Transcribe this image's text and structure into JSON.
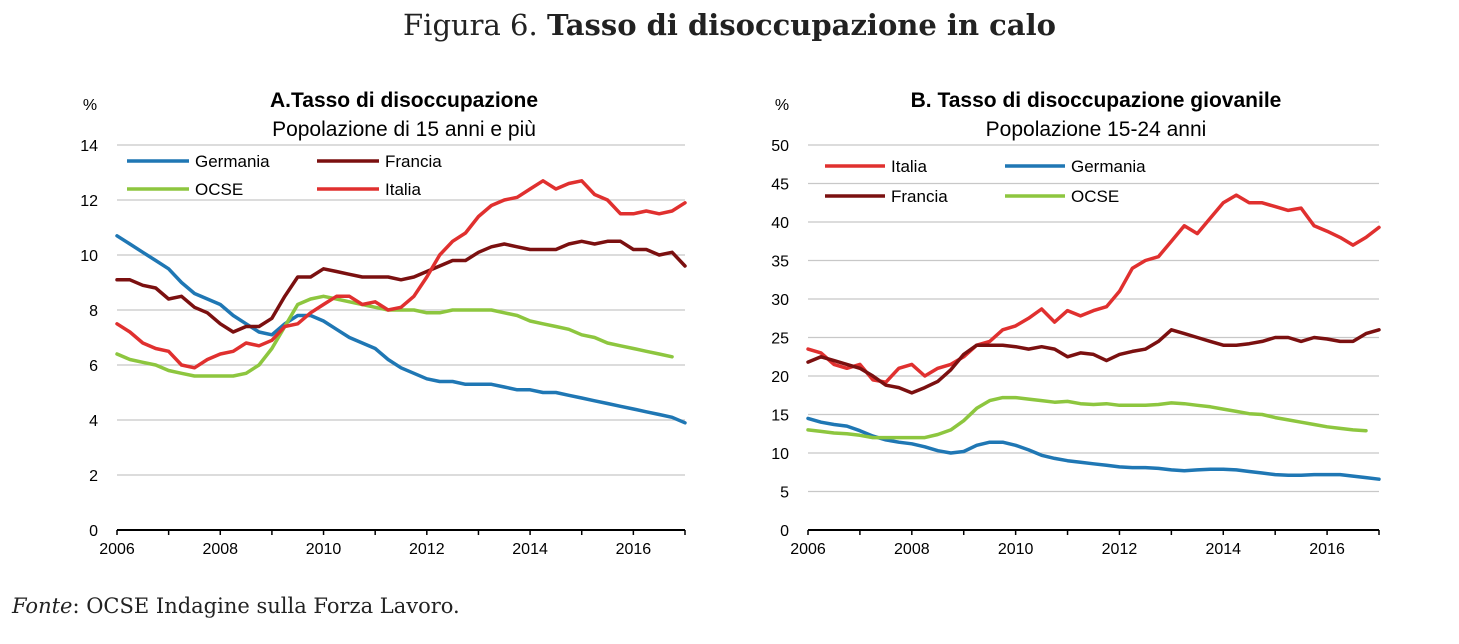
{
  "figure": {
    "label": "Figura 6.",
    "title": "Tasso di disoccupazione in calo",
    "source_label": "Fonte",
    "source_text": ": OCSE Indagine sulla Forza Lavoro."
  },
  "colors": {
    "Germania": "#1f77b4",
    "Francia": "#7b1010",
    "OCSE": "#8dc63f",
    "Italia": "#e0302f"
  },
  "chart_data": [
    {
      "type": "line",
      "title": "A.Tasso di disoccupazione",
      "subtitle": "Popolazione di 15 anni e più",
      "unit_label": "%",
      "xlim": [
        2006,
        2017
      ],
      "ylim": [
        0,
        14
      ],
      "yticks": [
        0,
        2,
        4,
        6,
        8,
        10,
        12,
        14
      ],
      "xticks": [
        2006,
        2008,
        2010,
        2012,
        2014,
        2016
      ],
      "grid": true,
      "legend_order": [
        "Germania",
        "Francia",
        "OCSE",
        "Italia"
      ],
      "series": [
        {
          "name": "Germania",
          "x": [
            2006,
            2006.25,
            2006.5,
            2006.75,
            2007,
            2007.25,
            2007.5,
            2007.75,
            2008,
            2008.25,
            2008.5,
            2008.75,
            2009,
            2009.25,
            2009.5,
            2009.75,
            2010,
            2010.25,
            2010.5,
            2010.75,
            2011,
            2011.25,
            2011.5,
            2011.75,
            2012,
            2012.25,
            2012.5,
            2012.75,
            2013,
            2013.25,
            2013.5,
            2013.75,
            2014,
            2014.25,
            2014.5,
            2014.75,
            2015,
            2015.25,
            2015.5,
            2015.75,
            2016,
            2016.25,
            2016.5,
            2016.75,
            2017
          ],
          "y": [
            10.7,
            10.4,
            10.1,
            9.8,
            9.5,
            9.0,
            8.6,
            8.4,
            8.2,
            7.8,
            7.5,
            7.2,
            7.1,
            7.5,
            7.8,
            7.8,
            7.6,
            7.3,
            7.0,
            6.8,
            6.6,
            6.2,
            5.9,
            5.7,
            5.5,
            5.4,
            5.4,
            5.3,
            5.3,
            5.3,
            5.2,
            5.1,
            5.1,
            5.0,
            5.0,
            4.9,
            4.8,
            4.7,
            4.6,
            4.5,
            4.4,
            4.3,
            4.2,
            4.1,
            3.9
          ]
        },
        {
          "name": "Francia",
          "x": [
            2006,
            2006.25,
            2006.5,
            2006.75,
            2007,
            2007.25,
            2007.5,
            2007.75,
            2008,
            2008.25,
            2008.5,
            2008.75,
            2009,
            2009.25,
            2009.5,
            2009.75,
            2010,
            2010.25,
            2010.5,
            2010.75,
            2011,
            2011.25,
            2011.5,
            2011.75,
            2012,
            2012.25,
            2012.5,
            2012.75,
            2013,
            2013.25,
            2013.5,
            2013.75,
            2014,
            2014.25,
            2014.5,
            2014.75,
            2015,
            2015.25,
            2015.5,
            2015.75,
            2016,
            2016.25,
            2016.5,
            2016.75,
            2017
          ],
          "y": [
            9.1,
            9.1,
            8.9,
            8.8,
            8.4,
            8.5,
            8.1,
            7.9,
            7.5,
            7.2,
            7.4,
            7.4,
            7.7,
            8.5,
            9.2,
            9.2,
            9.5,
            9.4,
            9.3,
            9.2,
            9.2,
            9.2,
            9.1,
            9.2,
            9.4,
            9.6,
            9.8,
            9.8,
            10.1,
            10.3,
            10.4,
            10.3,
            10.2,
            10.2,
            10.2,
            10.4,
            10.5,
            10.4,
            10.5,
            10.5,
            10.2,
            10.2,
            10.0,
            10.1,
            9.6
          ]
        },
        {
          "name": "OCSE",
          "x": [
            2006,
            2006.25,
            2006.5,
            2006.75,
            2007,
            2007.25,
            2007.5,
            2007.75,
            2008,
            2008.25,
            2008.5,
            2008.75,
            2009,
            2009.25,
            2009.5,
            2009.75,
            2010,
            2010.25,
            2010.5,
            2010.75,
            2011,
            2011.25,
            2011.5,
            2011.75,
            2012,
            2012.25,
            2012.5,
            2012.75,
            2013,
            2013.25,
            2013.5,
            2013.75,
            2014,
            2014.25,
            2014.5,
            2014.75,
            2015,
            2015.25,
            2015.5,
            2015.75,
            2016,
            2016.25,
            2016.5,
            2016.75
          ],
          "y": [
            6.4,
            6.2,
            6.1,
            6.0,
            5.8,
            5.7,
            5.6,
            5.6,
            5.6,
            5.6,
            5.7,
            6.0,
            6.6,
            7.4,
            8.2,
            8.4,
            8.5,
            8.4,
            8.3,
            8.2,
            8.1,
            8.0,
            8.0,
            8.0,
            7.9,
            7.9,
            8.0,
            8.0,
            8.0,
            8.0,
            7.9,
            7.8,
            7.6,
            7.5,
            7.4,
            7.3,
            7.1,
            7.0,
            6.8,
            6.7,
            6.6,
            6.5,
            6.4,
            6.3
          ]
        },
        {
          "name": "Italia",
          "x": [
            2006,
            2006.25,
            2006.5,
            2006.75,
            2007,
            2007.25,
            2007.5,
            2007.75,
            2008,
            2008.25,
            2008.5,
            2008.75,
            2009,
            2009.25,
            2009.5,
            2009.75,
            2010,
            2010.25,
            2010.5,
            2010.75,
            2011,
            2011.25,
            2011.5,
            2011.75,
            2012,
            2012.25,
            2012.5,
            2012.75,
            2013,
            2013.25,
            2013.5,
            2013.75,
            2014,
            2014.25,
            2014.5,
            2014.75,
            2015,
            2015.25,
            2015.5,
            2015.75,
            2016,
            2016.25,
            2016.5,
            2016.75,
            2017
          ],
          "y": [
            7.5,
            7.2,
            6.8,
            6.6,
            6.5,
            6.0,
            5.9,
            6.2,
            6.4,
            6.5,
            6.8,
            6.7,
            6.9,
            7.4,
            7.5,
            7.9,
            8.2,
            8.5,
            8.5,
            8.2,
            8.3,
            8.0,
            8.1,
            8.5,
            9.2,
            10.0,
            10.5,
            10.8,
            11.4,
            11.8,
            12.0,
            12.1,
            12.4,
            12.7,
            12.4,
            12.6,
            12.7,
            12.2,
            12.0,
            11.5,
            11.5,
            11.6,
            11.5,
            11.6,
            11.9
          ]
        }
      ]
    },
    {
      "type": "line",
      "title": "B. Tasso di disoccupazione giovanile",
      "subtitle": "Popolazione 15-24 anni",
      "unit_label": "%",
      "xlim": [
        2006,
        2017
      ],
      "ylim": [
        0,
        50
      ],
      "yticks": [
        0,
        5,
        10,
        15,
        20,
        25,
        30,
        35,
        40,
        45,
        50
      ],
      "xticks": [
        2006,
        2008,
        2010,
        2012,
        2014,
        2016
      ],
      "grid": true,
      "legend_order": [
        "Italia",
        "Germania",
        "Francia",
        "OCSE"
      ],
      "series": [
        {
          "name": "Italia",
          "x": [
            2006,
            2006.25,
            2006.5,
            2006.75,
            2007,
            2007.25,
            2007.5,
            2007.75,
            2008,
            2008.25,
            2008.5,
            2008.75,
            2009,
            2009.25,
            2009.5,
            2009.75,
            2010,
            2010.25,
            2010.5,
            2010.75,
            2011,
            2011.25,
            2011.5,
            2011.75,
            2012,
            2012.25,
            2012.5,
            2012.75,
            2013,
            2013.25,
            2013.5,
            2013.75,
            2014,
            2014.25,
            2014.5,
            2014.75,
            2015,
            2015.25,
            2015.5,
            2015.75,
            2016,
            2016.25,
            2016.5,
            2016.75,
            2017
          ],
          "y": [
            23.5,
            23.0,
            21.5,
            21.0,
            21.5,
            19.5,
            19.2,
            21.0,
            21.5,
            20.0,
            21.0,
            21.5,
            22.5,
            24.0,
            24.5,
            26.0,
            26.5,
            27.5,
            28.7,
            27.0,
            28.5,
            27.8,
            28.5,
            29.0,
            31.0,
            34.0,
            35.0,
            35.5,
            37.5,
            39.5,
            38.5,
            40.5,
            42.5,
            43.5,
            42.5,
            42.5,
            42.0,
            41.5,
            41.8,
            39.5,
            38.8,
            38.0,
            37.0,
            38.0,
            39.3
          ]
        },
        {
          "name": "Germania",
          "x": [
            2006,
            2006.25,
            2006.5,
            2006.75,
            2007,
            2007.25,
            2007.5,
            2007.75,
            2008,
            2008.25,
            2008.5,
            2008.75,
            2009,
            2009.25,
            2009.5,
            2009.75,
            2010,
            2010.25,
            2010.5,
            2010.75,
            2011,
            2011.25,
            2011.5,
            2011.75,
            2012,
            2012.25,
            2012.5,
            2012.75,
            2013,
            2013.25,
            2013.5,
            2013.75,
            2014,
            2014.25,
            2014.5,
            2014.75,
            2015,
            2015.25,
            2015.5,
            2015.75,
            2016,
            2016.25,
            2016.5,
            2016.75,
            2017
          ],
          "y": [
            14.5,
            14.0,
            13.7,
            13.5,
            12.9,
            12.2,
            11.7,
            11.4,
            11.2,
            10.8,
            10.3,
            10.0,
            10.2,
            11.0,
            11.4,
            11.4,
            11.0,
            10.4,
            9.7,
            9.3,
            9.0,
            8.8,
            8.6,
            8.4,
            8.2,
            8.1,
            8.1,
            8.0,
            7.8,
            7.7,
            7.8,
            7.9,
            7.9,
            7.8,
            7.6,
            7.4,
            7.2,
            7.1,
            7.1,
            7.2,
            7.2,
            7.2,
            7.0,
            6.8,
            6.6
          ]
        },
        {
          "name": "Francia",
          "x": [
            2006,
            2006.25,
            2006.5,
            2006.75,
            2007,
            2007.25,
            2007.5,
            2007.75,
            2008,
            2008.25,
            2008.5,
            2008.75,
            2009,
            2009.25,
            2009.5,
            2009.75,
            2010,
            2010.25,
            2010.5,
            2010.75,
            2011,
            2011.25,
            2011.5,
            2011.75,
            2012,
            2012.25,
            2012.5,
            2012.75,
            2013,
            2013.25,
            2013.5,
            2013.75,
            2014,
            2014.25,
            2014.5,
            2014.75,
            2015,
            2015.25,
            2015.5,
            2015.75,
            2016,
            2016.25,
            2016.5,
            2016.75,
            2017
          ],
          "y": [
            21.8,
            22.5,
            22.0,
            21.5,
            21.0,
            20.0,
            18.8,
            18.5,
            17.8,
            18.5,
            19.3,
            20.8,
            22.8,
            24.0,
            24.0,
            24.0,
            23.8,
            23.5,
            23.8,
            23.5,
            22.5,
            23.0,
            22.8,
            22.0,
            22.8,
            23.2,
            23.5,
            24.5,
            26.0,
            25.5,
            25.0,
            24.5,
            24.0,
            24.0,
            24.2,
            24.5,
            25.0,
            25.0,
            24.5,
            25.0,
            24.8,
            24.5,
            24.5,
            25.5,
            26.0
          ]
        },
        {
          "name": "OCSE",
          "x": [
            2006,
            2006.25,
            2006.5,
            2006.75,
            2007,
            2007.25,
            2007.5,
            2007.75,
            2008,
            2008.25,
            2008.5,
            2008.75,
            2009,
            2009.25,
            2009.5,
            2009.75,
            2010,
            2010.25,
            2010.5,
            2010.75,
            2011,
            2011.25,
            2011.5,
            2011.75,
            2012,
            2012.25,
            2012.5,
            2012.75,
            2013,
            2013.25,
            2013.5,
            2013.75,
            2014,
            2014.25,
            2014.5,
            2014.75,
            2015,
            2015.25,
            2015.5,
            2015.75,
            2016,
            2016.25,
            2016.5,
            2016.75
          ],
          "y": [
            13.0,
            12.8,
            12.6,
            12.5,
            12.3,
            12.0,
            12.0,
            12.0,
            12.0,
            12.0,
            12.4,
            13.0,
            14.2,
            15.8,
            16.8,
            17.2,
            17.2,
            17.0,
            16.8,
            16.6,
            16.7,
            16.4,
            16.3,
            16.4,
            16.2,
            16.2,
            16.2,
            16.3,
            16.5,
            16.4,
            16.2,
            16.0,
            15.7,
            15.4,
            15.1,
            15.0,
            14.6,
            14.3,
            14.0,
            13.7,
            13.4,
            13.2,
            13.0,
            12.9
          ]
        }
      ]
    }
  ]
}
